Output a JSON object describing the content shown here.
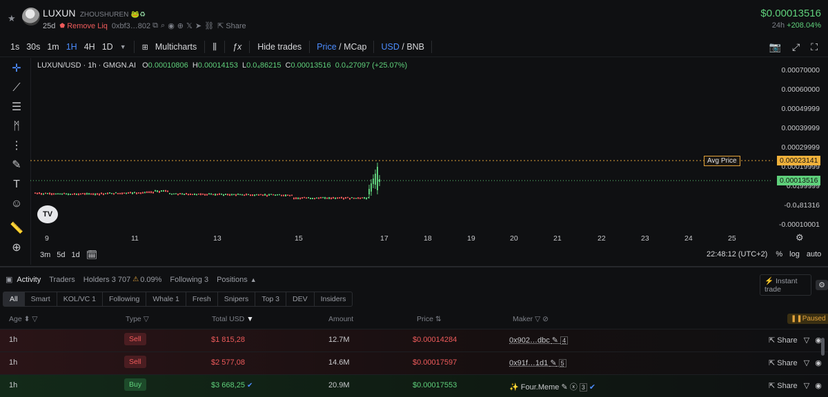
{
  "header": {
    "name": "LUXUN",
    "subname": "ZHOUSHUREN",
    "age": "25d",
    "remove_liq": "Remove Liq",
    "address": "0xbf3…802",
    "share": "Share",
    "price": "$0.00013516",
    "change_label": "24h",
    "change_value": "+208.04%"
  },
  "toolbar": {
    "intervals": [
      "1s",
      "30s",
      "1m",
      "1H",
      "4H",
      "1D"
    ],
    "active_interval": "1H",
    "multicharts": "Multicharts",
    "hide_trades": "Hide trades",
    "price": "Price",
    "mcap": "MCap",
    "usd": "USD",
    "bnb": "BNB"
  },
  "legend": {
    "symbol": "LUXUN/USD · 1h · GMGN.AI",
    "o_label": "O",
    "o_value": "0.00010806",
    "h_label": "H",
    "h_value": "0.00014153",
    "l_label": "L",
    "l_value": "0.0₄86215",
    "c_label": "C",
    "c_value": "0.00013516",
    "delta": "0.0₄27097 (+25.07%)"
  },
  "chart_data": {
    "type": "candlestick",
    "y_ticks": [
      "0.00070000",
      "0.00060000",
      "0.00049999",
      "0.00039999",
      "0.00029999",
      "0.00019999",
      "0.0₄99999",
      "-0.0₄81316",
      "-0.00010001"
    ],
    "x_ticks": [
      "9",
      "11",
      "13",
      "15",
      "17",
      "18",
      "19",
      "20",
      "21",
      "22",
      "23",
      "24",
      "25"
    ],
    "avg_price_label": "Avg Price",
    "avg_price": "0.00023141",
    "last_price": "0.00013516",
    "tv_logo": "TV"
  },
  "range_bar": {
    "ranges": [
      "3m",
      "5d",
      "1d"
    ],
    "time": "22:48:12 (UTC+2)",
    "percent": "%",
    "log": "log",
    "auto": "auto"
  },
  "activity": {
    "tabs": [
      "Activity",
      "Traders",
      "Holders 3 707",
      "0.09%",
      "Following 3",
      "Positions"
    ],
    "instant_trade": "Instant trade",
    "filters": [
      "All",
      "Smart",
      "KOL/VC 1",
      "Following",
      "Whale 1",
      "Fresh",
      "Snipers",
      "Top 3",
      "DEV",
      "Insiders"
    ],
    "columns": [
      "Age",
      "Type",
      "Total USD",
      "Amount",
      "Price",
      "Maker"
    ],
    "paused": "Paused",
    "rows": [
      {
        "age": "1h",
        "type": "Sell",
        "total": "$1 815,28",
        "amount": "12.7M",
        "price": "$0.00014284",
        "maker": "0x902…dbc",
        "count": "4",
        "share": "Share"
      },
      {
        "age": "1h",
        "type": "Sell",
        "total": "$2 577,08",
        "amount": "14.6M",
        "price": "$0.00017597",
        "maker": "0x91f…1d1",
        "count": "5",
        "share": "Share"
      },
      {
        "age": "1h",
        "type": "Buy",
        "total": "$3 668,25",
        "amount": "20.9M",
        "price": "$0.00017553",
        "maker": "Four.Meme",
        "count": "3",
        "share": "Share"
      }
    ]
  }
}
